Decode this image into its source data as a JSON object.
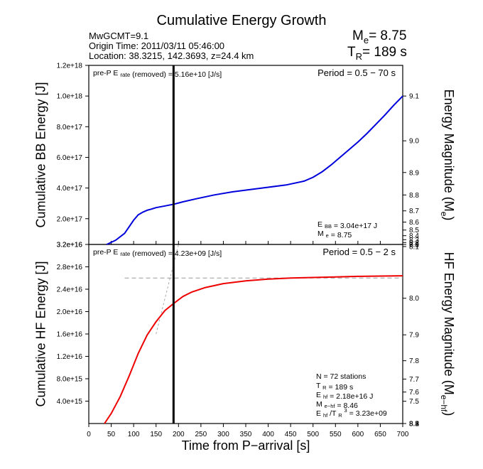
{
  "header": {
    "title": "Cumulative Energy Growth",
    "event": "MwGCMT=9.1",
    "origin_time": "Origin Time: 2011/03/11 05:46:00",
    "location": "Location: 38.3215, 142.3693, z=24.4 km",
    "me_label": "M",
    "me_sub": "e",
    "me_value": "= 8.75",
    "tr_label": "T",
    "tr_sub": "R",
    "tr_value": "= 189 s"
  },
  "chart_data": [
    {
      "type": "line",
      "panel": "top",
      "ylabel": "Cumulative BB Energy [J]",
      "y2label": "Energy Magnitude (Me)",
      "xlim": [
        0,
        700
      ],
      "ylim": [
        3.2e+16,
        1.2e+18
      ],
      "yticks": [
        "1.2e+18",
        "1.0e+18",
        "8.0e+17",
        "6.0e+17",
        "4.0e+17",
        "2.0e+17",
        "3.2e+16"
      ],
      "ytick_values": [
        1.2e+18,
        1e+18,
        8e+17,
        6e+17,
        4e+17,
        2e+17,
        3.2e+16
      ],
      "y2ticks": [
        "9.1",
        "9.0",
        "8.9",
        "8.8",
        "8.7",
        "8.6",
        "8.5",
        "8.4",
        "8.3",
        "8.2",
        "8.1",
        "8.0",
        "7.9"
      ],
      "grid": false,
      "series": [
        {
          "color": "#0000dd",
          "x": [
            40,
            60,
            80,
            100,
            110,
            120,
            130,
            140,
            150,
            170,
            190,
            210,
            240,
            280,
            320,
            360,
            400,
            440,
            480,
            500,
            520,
            540,
            560,
            580,
            600,
            620,
            640,
            660,
            680,
            700
          ],
          "y": [
            3.2e+16,
            6e+16,
            1.05e+17,
            1.9e+17,
            2.25e+17,
            2.42e+17,
            2.55e+17,
            2.63e+17,
            2.72e+17,
            2.83e+17,
            2.95e+17,
            3.1e+17,
            3.3e+17,
            3.55e+17,
            3.75e+17,
            3.9e+17,
            4.05e+17,
            4.2e+17,
            4.45e+17,
            4.7e+17,
            5.05e+17,
            5.5e+17,
            6e+17,
            6.5e+17,
            7e+17,
            7.55e+17,
            8.15e+17,
            8.75e+17,
            9.4e+17,
            1e+18
          ]
        }
      ],
      "annotations": {
        "pre_p": "pre-P",
        "erate": "E",
        "erate_sub": "rate",
        "removed": "(removed)",
        "value": "= 5.16e+10 [J/s]",
        "period": "Period = 0.5 − 70 s",
        "ebb_label": "E",
        "ebb_sub": "BB",
        "ebb_value": "= 3.04e+17 J",
        "me_label": "M",
        "me_sub": "e",
        "me_value": "= 8.75"
      }
    },
    {
      "type": "line",
      "panel": "bottom",
      "ylabel": "Cumulative HF Energy [J]",
      "y2label": "HF Energy Magnitude (Me−hf)",
      "xlabel": "Time from P−arrival [s]",
      "xlim": [
        0,
        700
      ],
      "ylim": [
        0,
        3.2e+16
      ],
      "xticks": [
        "0",
        "50",
        "100",
        "150",
        "200",
        "250",
        "300",
        "350",
        "400",
        "450",
        "500",
        "550",
        "600",
        "650",
        "700"
      ],
      "xtick_values": [
        0,
        50,
        100,
        150,
        200,
        250,
        300,
        350,
        400,
        450,
        500,
        550,
        600,
        650,
        700
      ],
      "yticks": [
        "3.2e+16",
        "2.8e+16",
        "2.4e+16",
        "2.0e+16",
        "1.6e+16",
        "1.2e+16",
        "8.0e+15",
        "4.0e+15"
      ],
      "ytick_values": [
        3.2e+16,
        2.8e+16,
        2.4e+16,
        2e+16,
        1.6e+16,
        1.2e+16,
        8000000000000000.0,
        4000000000000000.0
      ],
      "y2ticks": [
        "8.5",
        "8.4",
        "8.3",
        "8.2",
        "8.1",
        "8.0",
        "7.9",
        "7.8",
        "7.7",
        "7.6",
        "7.5"
      ],
      "grid": false,
      "series": [
        {
          "color": "#ee0000",
          "x": [
            35,
            50,
            70,
            90,
            110,
            130,
            150,
            170,
            190,
            210,
            230,
            260,
            300,
            350,
            400,
            450,
            500,
            550,
            600,
            650,
            700
          ],
          "y": [
            0,
            1800000000000000.0,
            4800000000000000.0,
            8500000000000000.0,
            1.25e+16,
            1.58e+16,
            1.82e+16,
            2.02e+16,
            2.15e+16,
            2.27e+16,
            2.35e+16,
            2.43e+16,
            2.5e+16,
            2.55e+16,
            2.58e+16,
            2.6e+16,
            2.61e+16,
            2.62e+16,
            2.63e+16,
            2.635e+16,
            2.64e+16
          ]
        }
      ],
      "reference_lines": {
        "vertical_x": 189,
        "plateau_y": 2.6e+16,
        "plateau_x_start": 80,
        "tangent_x": [
          150,
          200
        ],
        "tangent_y": [
          1.6e+16,
          3.2e+16
        ]
      },
      "annotations": {
        "pre_p": "pre-P",
        "erate": "E",
        "erate_sub": "rate",
        "removed": "(removed)",
        "value": "= 4.23e+09 [J/s]",
        "period": "Period = 0.5 − 2 s",
        "n_stations": "N = 72 stations",
        "tr_label": "T",
        "tr_sub": "R",
        "tr_value": "= 189  s",
        "ehf_label": "E",
        "ehf_sub": "hf",
        "ehf_value": "= 2.18e+16 J",
        "mehf_label": "M",
        "mehf_sub": "e−hf",
        "mehf_value": "= 8.46",
        "ratio_label": "E",
        "ratio_sub": "hf",
        "ratio_mid": "/T",
        "ratio_sub2": "R",
        "ratio_sup": "3",
        "ratio_value": " =  3.23e+09"
      }
    }
  ]
}
